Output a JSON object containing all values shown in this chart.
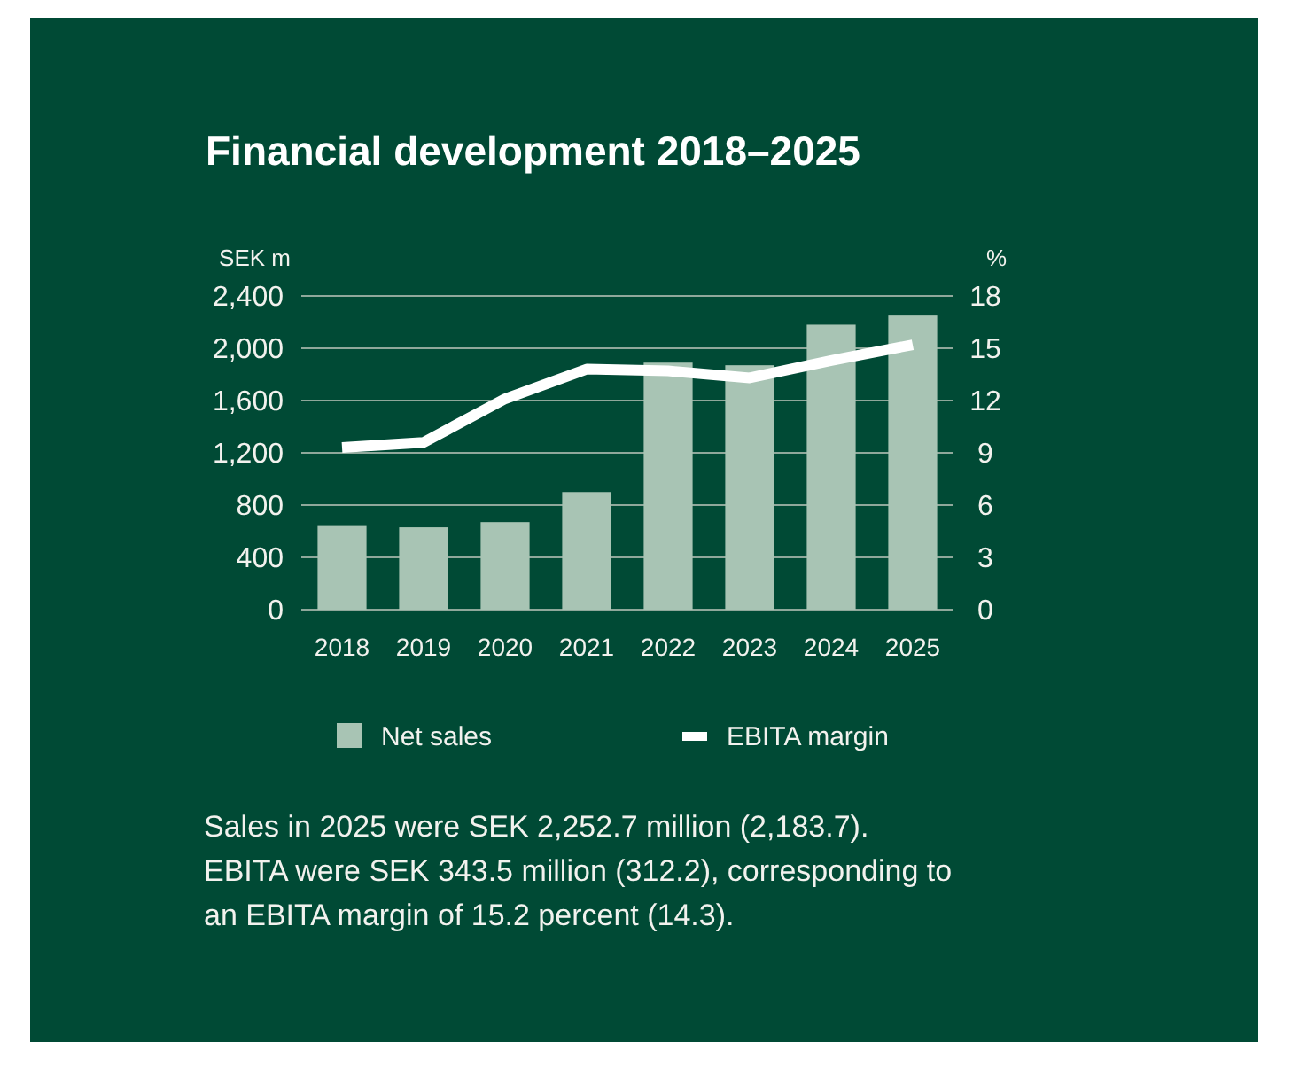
{
  "chart_data": {
    "type": "bar",
    "title": "Financial development 2018–2025",
    "ylabel": "SEK m",
    "y2label": "%",
    "categories": [
      "2018",
      "2019",
      "2020",
      "2021",
      "2022",
      "2023",
      "2024",
      "2025"
    ],
    "series": [
      {
        "name": "Net sales",
        "color": "#a8c4b4",
        "values": [
          640,
          630,
          670,
          900,
          1890,
          1870,
          2180,
          2250
        ]
      },
      {
        "name": "EBITA margin",
        "type": "line",
        "axis": "y2",
        "color": "#ffffff",
        "values": [
          9.3,
          9.6,
          12.1,
          13.8,
          13.7,
          13.3,
          14.3,
          15.2
        ]
      }
    ],
    "ylim": [
      0,
      2400
    ],
    "yticks": [
      {
        "value": 0,
        "label": "0"
      },
      {
        "value": 400,
        "label": "400"
      },
      {
        "value": 800,
        "label": "800"
      },
      {
        "value": 1200,
        "label": "1,200"
      },
      {
        "value": 1600,
        "label": "1,600"
      },
      {
        "value": 2000,
        "label": "2,000"
      },
      {
        "value": 2400,
        "label": "2,400"
      }
    ],
    "y2lim": [
      0,
      18
    ],
    "y2ticks": [
      0,
      3,
      6,
      9,
      12,
      15,
      18
    ],
    "grid": "y",
    "legend": "bottom",
    "annotations": [
      "Sales in 2025 were SEK 2,252.7 million (2,183.7).",
      "EBITA were SEK 343.5 million (312.2), corresponding to an EBITA margin of 15.2 percent (14.3)."
    ]
  }
}
